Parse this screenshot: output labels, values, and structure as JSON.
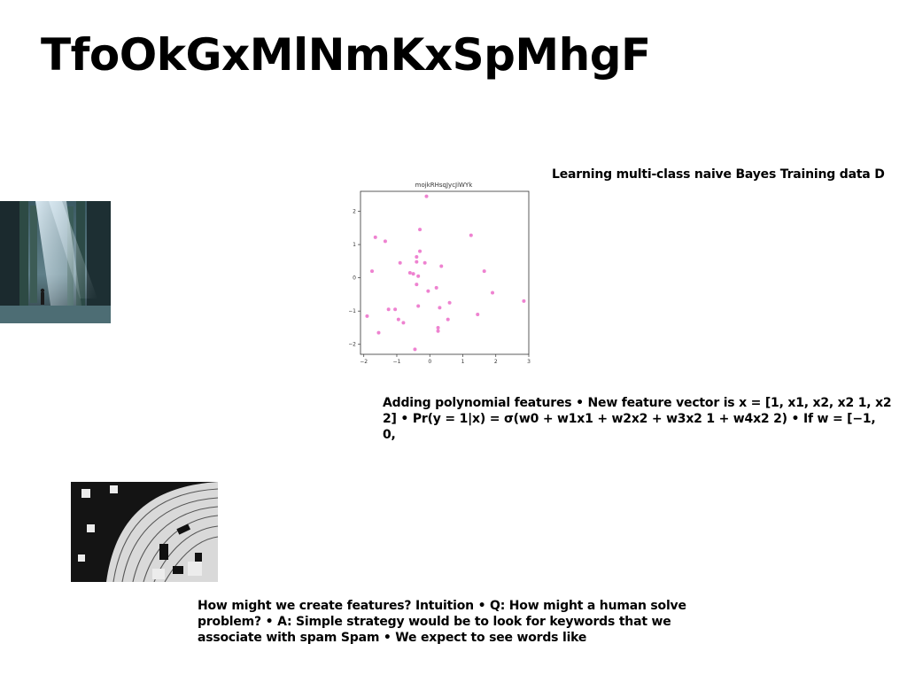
{
  "slide": {
    "title": "TfoOkGxMlNmKxSpMhgF",
    "text_blocks": [
      "Learning multi-class naive Bayes Training data D",
      "Adding polynomial features • New feature vector is x = [1, x1, x2, x2 1, x2 2] • Pr(y = 1|x) = σ(w0 + w1x1 + w2x2 + w3x2 1 + w4x2 2) • If w = [−1, 0,",
      "How might we create features? Intuition • Q: How might a human solve problem? • A: Simple strategy would be to look for keywords that we associate with spam Spam • We expect to see words like"
    ],
    "images": [
      {
        "name": "hallway-photo",
        "description": "dark hall with light rays"
      },
      {
        "name": "abstract-artwork",
        "description": "black and white abstract geometric artwork"
      }
    ]
  },
  "chart_data": {
    "type": "scatter",
    "title": "mojkRHsqJycJiWYk",
    "xlabel": "",
    "ylabel": "",
    "xlim": [
      -2.1,
      3.0
    ],
    "ylim": [
      -2.3,
      2.6
    ],
    "xticks": [
      -2,
      -1,
      0,
      1,
      2,
      3
    ],
    "yticks": [
      -2,
      -1,
      0,
      1,
      2
    ],
    "grid": false,
    "color": "#ee82d0",
    "series": [
      {
        "points": [
          [
            -0.1,
            2.45
          ],
          [
            -0.3,
            1.45
          ],
          [
            1.25,
            1.28
          ],
          [
            -1.65,
            1.22
          ],
          [
            -1.35,
            1.1
          ],
          [
            -0.3,
            0.8
          ],
          [
            -0.4,
            0.63
          ],
          [
            -0.9,
            0.45
          ],
          [
            -0.4,
            0.48
          ],
          [
            -0.15,
            0.45
          ],
          [
            0.35,
            0.35
          ],
          [
            -1.75,
            0.2
          ],
          [
            1.65,
            0.2
          ],
          [
            -0.6,
            0.15
          ],
          [
            -0.5,
            0.12
          ],
          [
            -0.35,
            0.05
          ],
          [
            -0.4,
            -0.2
          ],
          [
            0.2,
            -0.3
          ],
          [
            -0.05,
            -0.4
          ],
          [
            1.9,
            -0.45
          ],
          [
            2.85,
            -0.7
          ],
          [
            0.6,
            -0.75
          ],
          [
            -0.35,
            -0.85
          ],
          [
            0.3,
            -0.9
          ],
          [
            -1.25,
            -0.95
          ],
          [
            -1.05,
            -0.95
          ],
          [
            1.45,
            -1.1
          ],
          [
            -1.9,
            -1.15
          ],
          [
            -0.95,
            -1.25
          ],
          [
            0.55,
            -1.25
          ],
          [
            -0.8,
            -1.35
          ],
          [
            0.25,
            -1.5
          ],
          [
            0.25,
            -1.6
          ],
          [
            -1.55,
            -1.65
          ],
          [
            -0.45,
            -2.15
          ]
        ]
      }
    ]
  }
}
